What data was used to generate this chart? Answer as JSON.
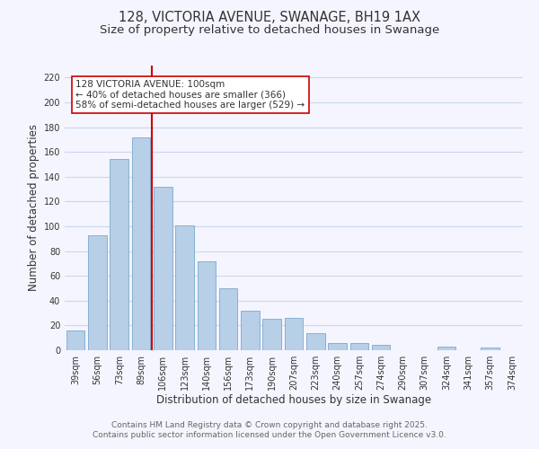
{
  "title": "128, VICTORIA AVENUE, SWANAGE, BH19 1AX",
  "subtitle": "Size of property relative to detached houses in Swanage",
  "xlabel": "Distribution of detached houses by size in Swanage",
  "ylabel": "Number of detached properties",
  "categories": [
    "39sqm",
    "56sqm",
    "73sqm",
    "89sqm",
    "106sqm",
    "123sqm",
    "140sqm",
    "156sqm",
    "173sqm",
    "190sqm",
    "207sqm",
    "223sqm",
    "240sqm",
    "257sqm",
    "274sqm",
    "290sqm",
    "307sqm",
    "324sqm",
    "341sqm",
    "357sqm",
    "374sqm"
  ],
  "values": [
    16,
    93,
    154,
    172,
    132,
    101,
    72,
    50,
    32,
    25,
    26,
    14,
    6,
    6,
    4,
    0,
    0,
    3,
    0,
    2,
    0
  ],
  "bar_color": "#b8cfe8",
  "bar_edge_color": "#7aaacf",
  "highlight_color": "#cc0000",
  "highlight_line_index": 3.5,
  "annotation_text_line1": "128 VICTORIA AVENUE: 100sqm",
  "annotation_text_line2": "← 40% of detached houses are smaller (366)",
  "annotation_text_line3": "58% of semi-detached houses are larger (529) →",
  "ylim": [
    0,
    230
  ],
  "yticks": [
    0,
    20,
    40,
    60,
    80,
    100,
    120,
    140,
    160,
    180,
    200,
    220
  ],
  "background_color": "#f5f5ff",
  "grid_color": "#c8d8ec",
  "footer_line1": "Contains HM Land Registry data © Crown copyright and database right 2025.",
  "footer_line2": "Contains public sector information licensed under the Open Government Licence v3.0.",
  "title_fontsize": 10.5,
  "subtitle_fontsize": 9.5,
  "xlabel_fontsize": 8.5,
  "ylabel_fontsize": 8.5,
  "tick_fontsize": 7,
  "annotation_fontsize": 7.5,
  "footer_fontsize": 6.5
}
